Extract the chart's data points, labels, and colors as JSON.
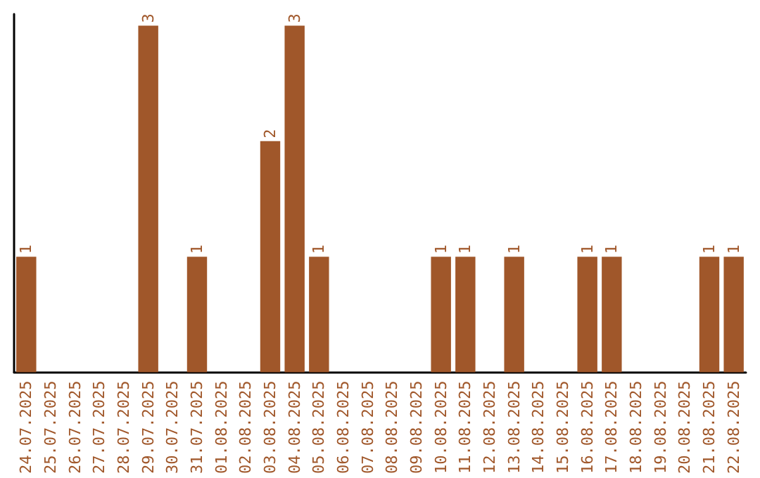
{
  "chart_data": {
    "type": "bar",
    "categories": [
      "24.07.2025",
      "25.07.2025",
      "26.07.2025",
      "27.07.2025",
      "28.07.2025",
      "29.07.2025",
      "30.07.2025",
      "31.07.2025",
      "01.08.2025",
      "02.08.2025",
      "03.08.2025",
      "04.08.2025",
      "05.08.2025",
      "06.08.2025",
      "07.08.2025",
      "08.08.2025",
      "09.08.2025",
      "10.08.2025",
      "11.08.2025",
      "12.08.2025",
      "13.08.2025",
      "14.08.2025",
      "15.08.2025",
      "16.08.2025",
      "17.08.2025",
      "18.08.2025",
      "19.08.2025",
      "20.08.2025",
      "21.08.2025",
      "22.08.2025"
    ],
    "values": [
      1,
      0,
      0,
      0,
      0,
      3,
      0,
      1,
      0,
      0,
      2,
      3,
      1,
      0,
      0,
      0,
      0,
      1,
      1,
      0,
      1,
      0,
      0,
      1,
      1,
      0,
      0,
      0,
      1,
      1
    ],
    "value_labels": [
      "1",
      null,
      null,
      null,
      null,
      "3",
      null,
      "1",
      null,
      null,
      "2",
      "3",
      "1",
      null,
      null,
      null,
      null,
      "1",
      "1",
      null,
      "1",
      null,
      null,
      "1",
      "1",
      null,
      null,
      null,
      "1",
      "1"
    ],
    "color": "#a0572a",
    "ylim": [
      0,
      3.1
    ],
    "tick_labels": "x"
  }
}
